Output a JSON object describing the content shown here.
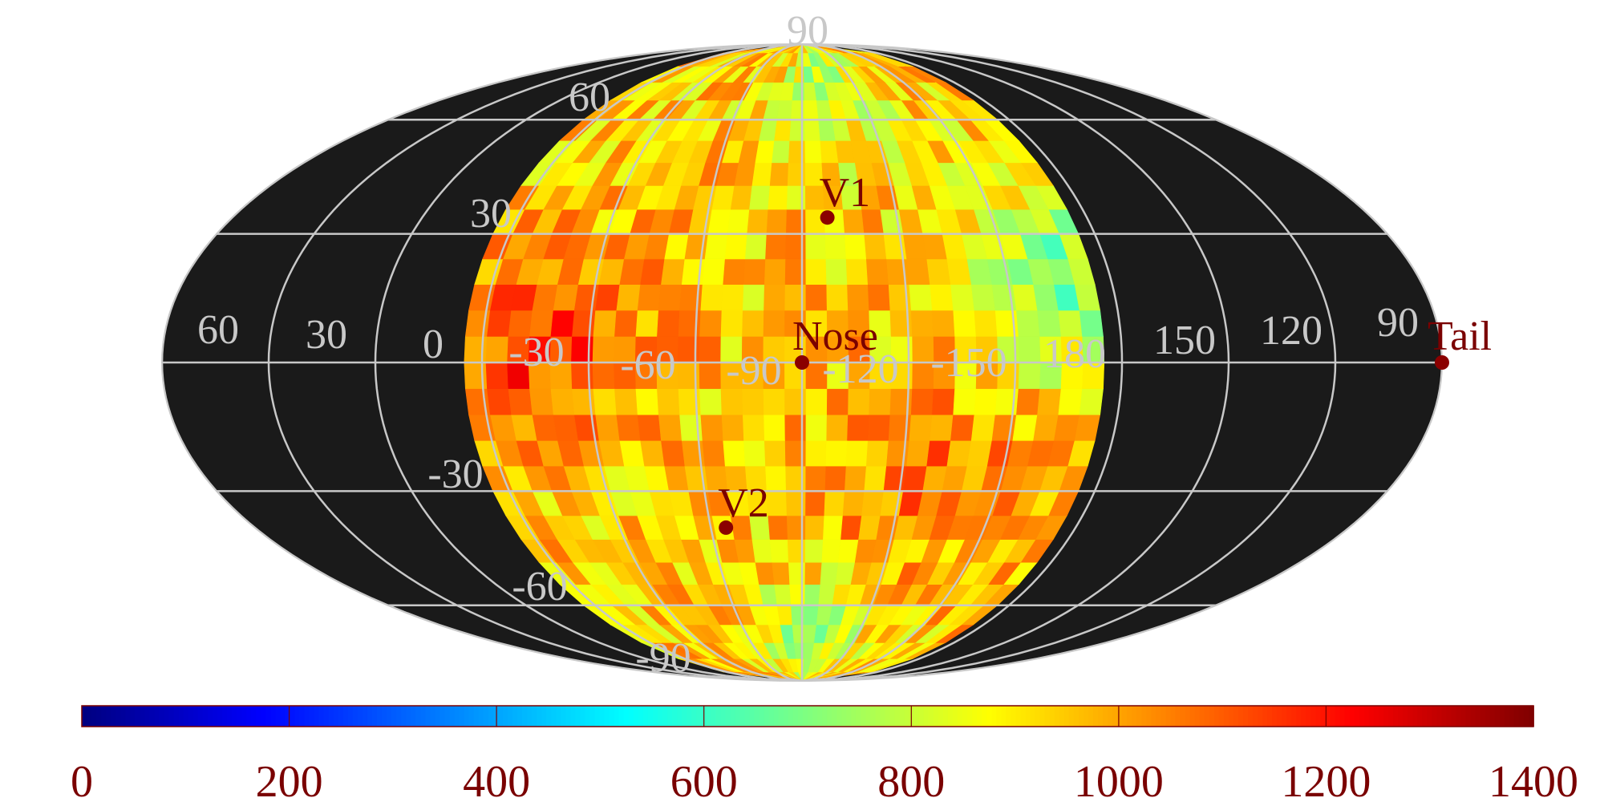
{
  "chart_data": {
    "type": "heatmap",
    "projection": "mollweide",
    "title": "",
    "background_color": "#1a1a1a",
    "grid_color": "#c8c8c8",
    "marker_color": "#8b0000",
    "label_color": "#7a0000",
    "colormap": "jet",
    "color_range": [
      0,
      1400
    ],
    "colorbar": {
      "ticks": [
        "0",
        "200",
        "400",
        "600",
        "800",
        "1000",
        "1200",
        "1400"
      ]
    },
    "latitude_labels": [
      "90",
      "60",
      "30",
      "-30",
      "-60",
      "-90"
    ],
    "longitude_labels": [
      "60",
      "30",
      "0",
      "-30",
      "-60",
      "-90",
      "-120",
      "-150",
      "180",
      "150",
      "120",
      "90"
    ],
    "markers": [
      {
        "name": "V1",
        "lon": -103,
        "lat": 34
      },
      {
        "name": "Nose",
        "lon": -95,
        "lat": 0
      },
      {
        "name": "V2",
        "lon": -70,
        "lat": -39
      },
      {
        "name": "Tail",
        "lon": 85,
        "lat": 0
      }
    ],
    "data_region": {
      "lon_range": [
        -180,
        0
      ],
      "cell_size_deg": 6,
      "typical_value": 950,
      "features": [
        {
          "desc": "high western limb",
          "lon": -20,
          "lat": 5,
          "value": 1150
        },
        {
          "desc": "high southern band",
          "lon": -135,
          "lat": -28,
          "value": 1070
        },
        {
          "desc": "lower eastern limb",
          "lon": -172,
          "lat": 20,
          "value": 700
        },
        {
          "desc": "lower southern cap",
          "lon": -100,
          "lat": -75,
          "value": 760
        },
        {
          "desc": "lower northern cap",
          "lon": -110,
          "lat": 70,
          "value": 780
        }
      ]
    }
  }
}
